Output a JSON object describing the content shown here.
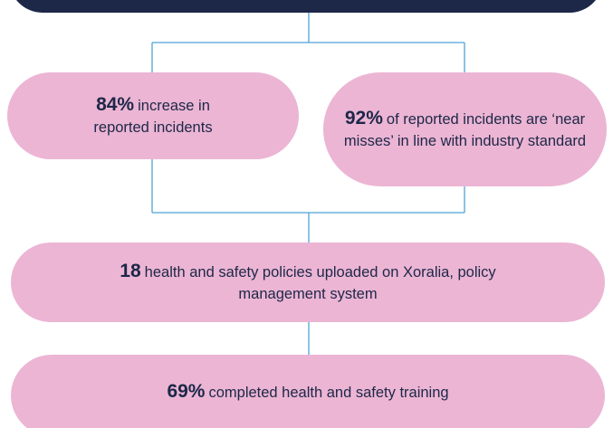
{
  "nodes": [
    {
      "value": "84%",
      "text": "increase in reported incidents"
    },
    {
      "value": "92%",
      "text": "of reported incidents are ‘near misses’ in line with industry standard"
    },
    {
      "value": "18",
      "text": "health and safety policies uploaded on Xoralia, policy management system"
    },
    {
      "value": "69%",
      "text": "completed health and safety training"
    }
  ]
}
